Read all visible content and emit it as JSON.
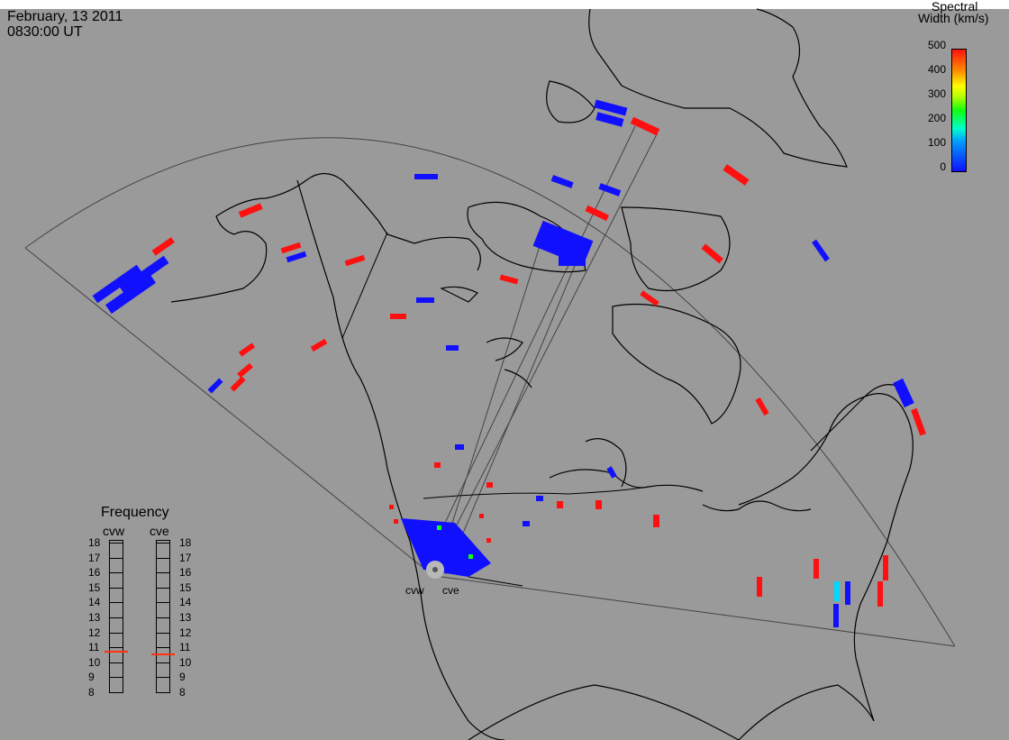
{
  "title": {
    "date": "February, 13 2011",
    "time": "0830:00 UT"
  },
  "colorbar": {
    "title_line1": "Spectral",
    "title_line2": "Width (km/s)",
    "ticks": [
      "500",
      "400",
      "300",
      "200",
      "100",
      "0"
    ],
    "colors": {
      "low": "#1010ff",
      "mid": "#10ff10",
      "high": "#ff1010"
    }
  },
  "frequency_panel": {
    "title": "Frequency",
    "radars": [
      {
        "name": "cvw",
        "value": 10.8
      },
      {
        "name": "cve",
        "value": 10.6
      }
    ],
    "ticks": [
      "18",
      "17",
      "16",
      "15",
      "14",
      "13",
      "12",
      "11",
      "10",
      "9",
      "8"
    ]
  },
  "radar_labels": {
    "west": "cvw",
    "east": "cve"
  },
  "colors": {
    "background": "#9a9a9a",
    "fov": "#444444",
    "coast": "#000000",
    "marker": "#ff3010"
  }
}
